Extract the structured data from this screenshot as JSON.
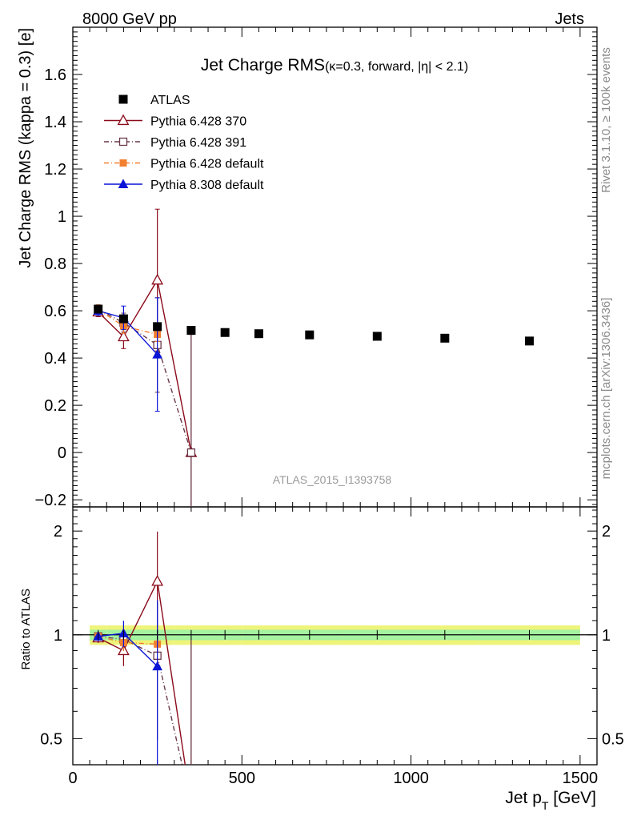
{
  "header": {
    "left": "8000 GeV pp",
    "right": "Jets"
  },
  "side_labels": {
    "top": "Rivet 3.1.10, ≥ 100k events",
    "bottom": "mcplots.cern.ch [arXiv:1306.3436]"
  },
  "chart_data": {
    "type": "scatter",
    "title": "Jet Charge RMS",
    "subtitle": "(κ=0.3, forward, |η| < 2.1)",
    "watermark": "ATLAS_2015_I1393758",
    "xlabel": "Jet p",
    "xlabel_sub": "T",
    "xlabel_unit": " [GeV]",
    "ylabel": "Jet Charge RMS (kappa = 0.3) [e]",
    "ratio_ylabel": "Ratio to ATLAS",
    "xlim": [
      0,
      1550
    ],
    "ylim": [
      -0.23,
      1.8
    ],
    "ratio_ylim": [
      0.42,
      2.35
    ],
    "ratio_scale": "log",
    "legend_position": "top-left",
    "x_ticks": [
      0,
      500,
      1000,
      1500
    ],
    "y_ticks": [
      -0.2,
      0,
      0.2,
      0.4,
      0.6,
      0.8,
      1,
      1.2,
      1.4,
      1.6
    ],
    "ratio_ticks": [
      0.5,
      1,
      2
    ],
    "data": {
      "name": "ATLAS",
      "color": "#000000",
      "marker": "square",
      "x": [
        75,
        150,
        250,
        350,
        450,
        550,
        700,
        900,
        1100,
        1350
      ],
      "xerr": [
        25,
        50,
        50,
        50,
        50,
        50,
        100,
        100,
        100,
        150
      ],
      "y": [
        0.607,
        0.566,
        0.533,
        0.517,
        0.508,
        0.503,
        0.498,
        0.492,
        0.484,
        0.472
      ]
    },
    "series": [
      {
        "name": "Pythia 6.428 370",
        "color": "#8b0a1a",
        "marker": "open-triangle",
        "dash": "",
        "x": [
          75,
          150,
          250,
          350
        ],
        "y": [
          0.595,
          0.49,
          0.73,
          0.0
        ],
        "yerr": [
          0.02,
          0.05,
          0.3,
          0.5
        ],
        "ratio": [
          0.98,
          0.9,
          1.43,
          0.0
        ]
      },
      {
        "name": "Pythia 6.428 391",
        "color": "#6b3a4a",
        "marker": "open-square",
        "dash": "6,3,1,3",
        "x": [
          75,
          150,
          250,
          350
        ],
        "y": [
          0.605,
          0.55,
          0.455,
          0.0
        ],
        "yerr": [
          0.02,
          0.04,
          0.2,
          0.5
        ],
        "ratio": [
          0.99,
          0.97,
          0.87,
          0.0
        ]
      },
      {
        "name": "Pythia 6.428 default",
        "color": "#f28030",
        "marker": "filled-square",
        "dash": "6,3,1,3",
        "x": [
          75,
          150,
          250
        ],
        "y": [
          0.605,
          0.535,
          0.5
        ],
        "yerr": [
          0.02,
          0.03,
          0.03
        ],
        "ratio": [
          0.99,
          0.95,
          0.94
        ]
      },
      {
        "name": "Pythia 8.308 default",
        "color": "#0a14d6",
        "marker": "filled-triangle",
        "dash": "",
        "x": [
          75,
          150,
          250
        ],
        "y": [
          0.6,
          0.57,
          0.415
        ],
        "yerr": [
          0.02,
          0.05,
          0.24
        ],
        "ratio": [
          0.99,
          1.01,
          0.81
        ]
      }
    ]
  }
}
